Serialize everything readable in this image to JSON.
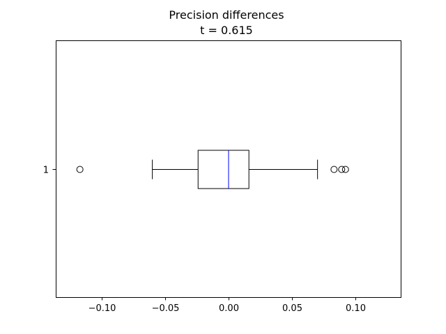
{
  "chart_data": {
    "type": "boxplot",
    "orientation": "horizontal",
    "title": "Precision differences",
    "subtitle": "t = 0.615",
    "xlabel": "",
    "ylabel": "",
    "xlim": [
      -0.136,
      0.136
    ],
    "x_ticks": [
      -0.1,
      -0.05,
      0.0,
      0.05,
      0.1
    ],
    "x_tick_labels": [
      "−0.10",
      "−0.05",
      "0.00",
      "0.05",
      "0.10"
    ],
    "y_tick_labels": [
      "1"
    ],
    "grid": false,
    "legend": "none",
    "series": [
      {
        "category": "1",
        "whisker_low": -0.06,
        "q1": -0.024,
        "median": 0.0,
        "q3": 0.016,
        "whisker_high": 0.07,
        "outliers": [
          -0.117,
          0.083,
          0.089,
          0.092
        ]
      }
    ],
    "colors": {
      "box": "#000000",
      "median": "#0000ff",
      "whisker": "#000000",
      "outlier_edge": "#000000",
      "frame": "#000000"
    }
  }
}
